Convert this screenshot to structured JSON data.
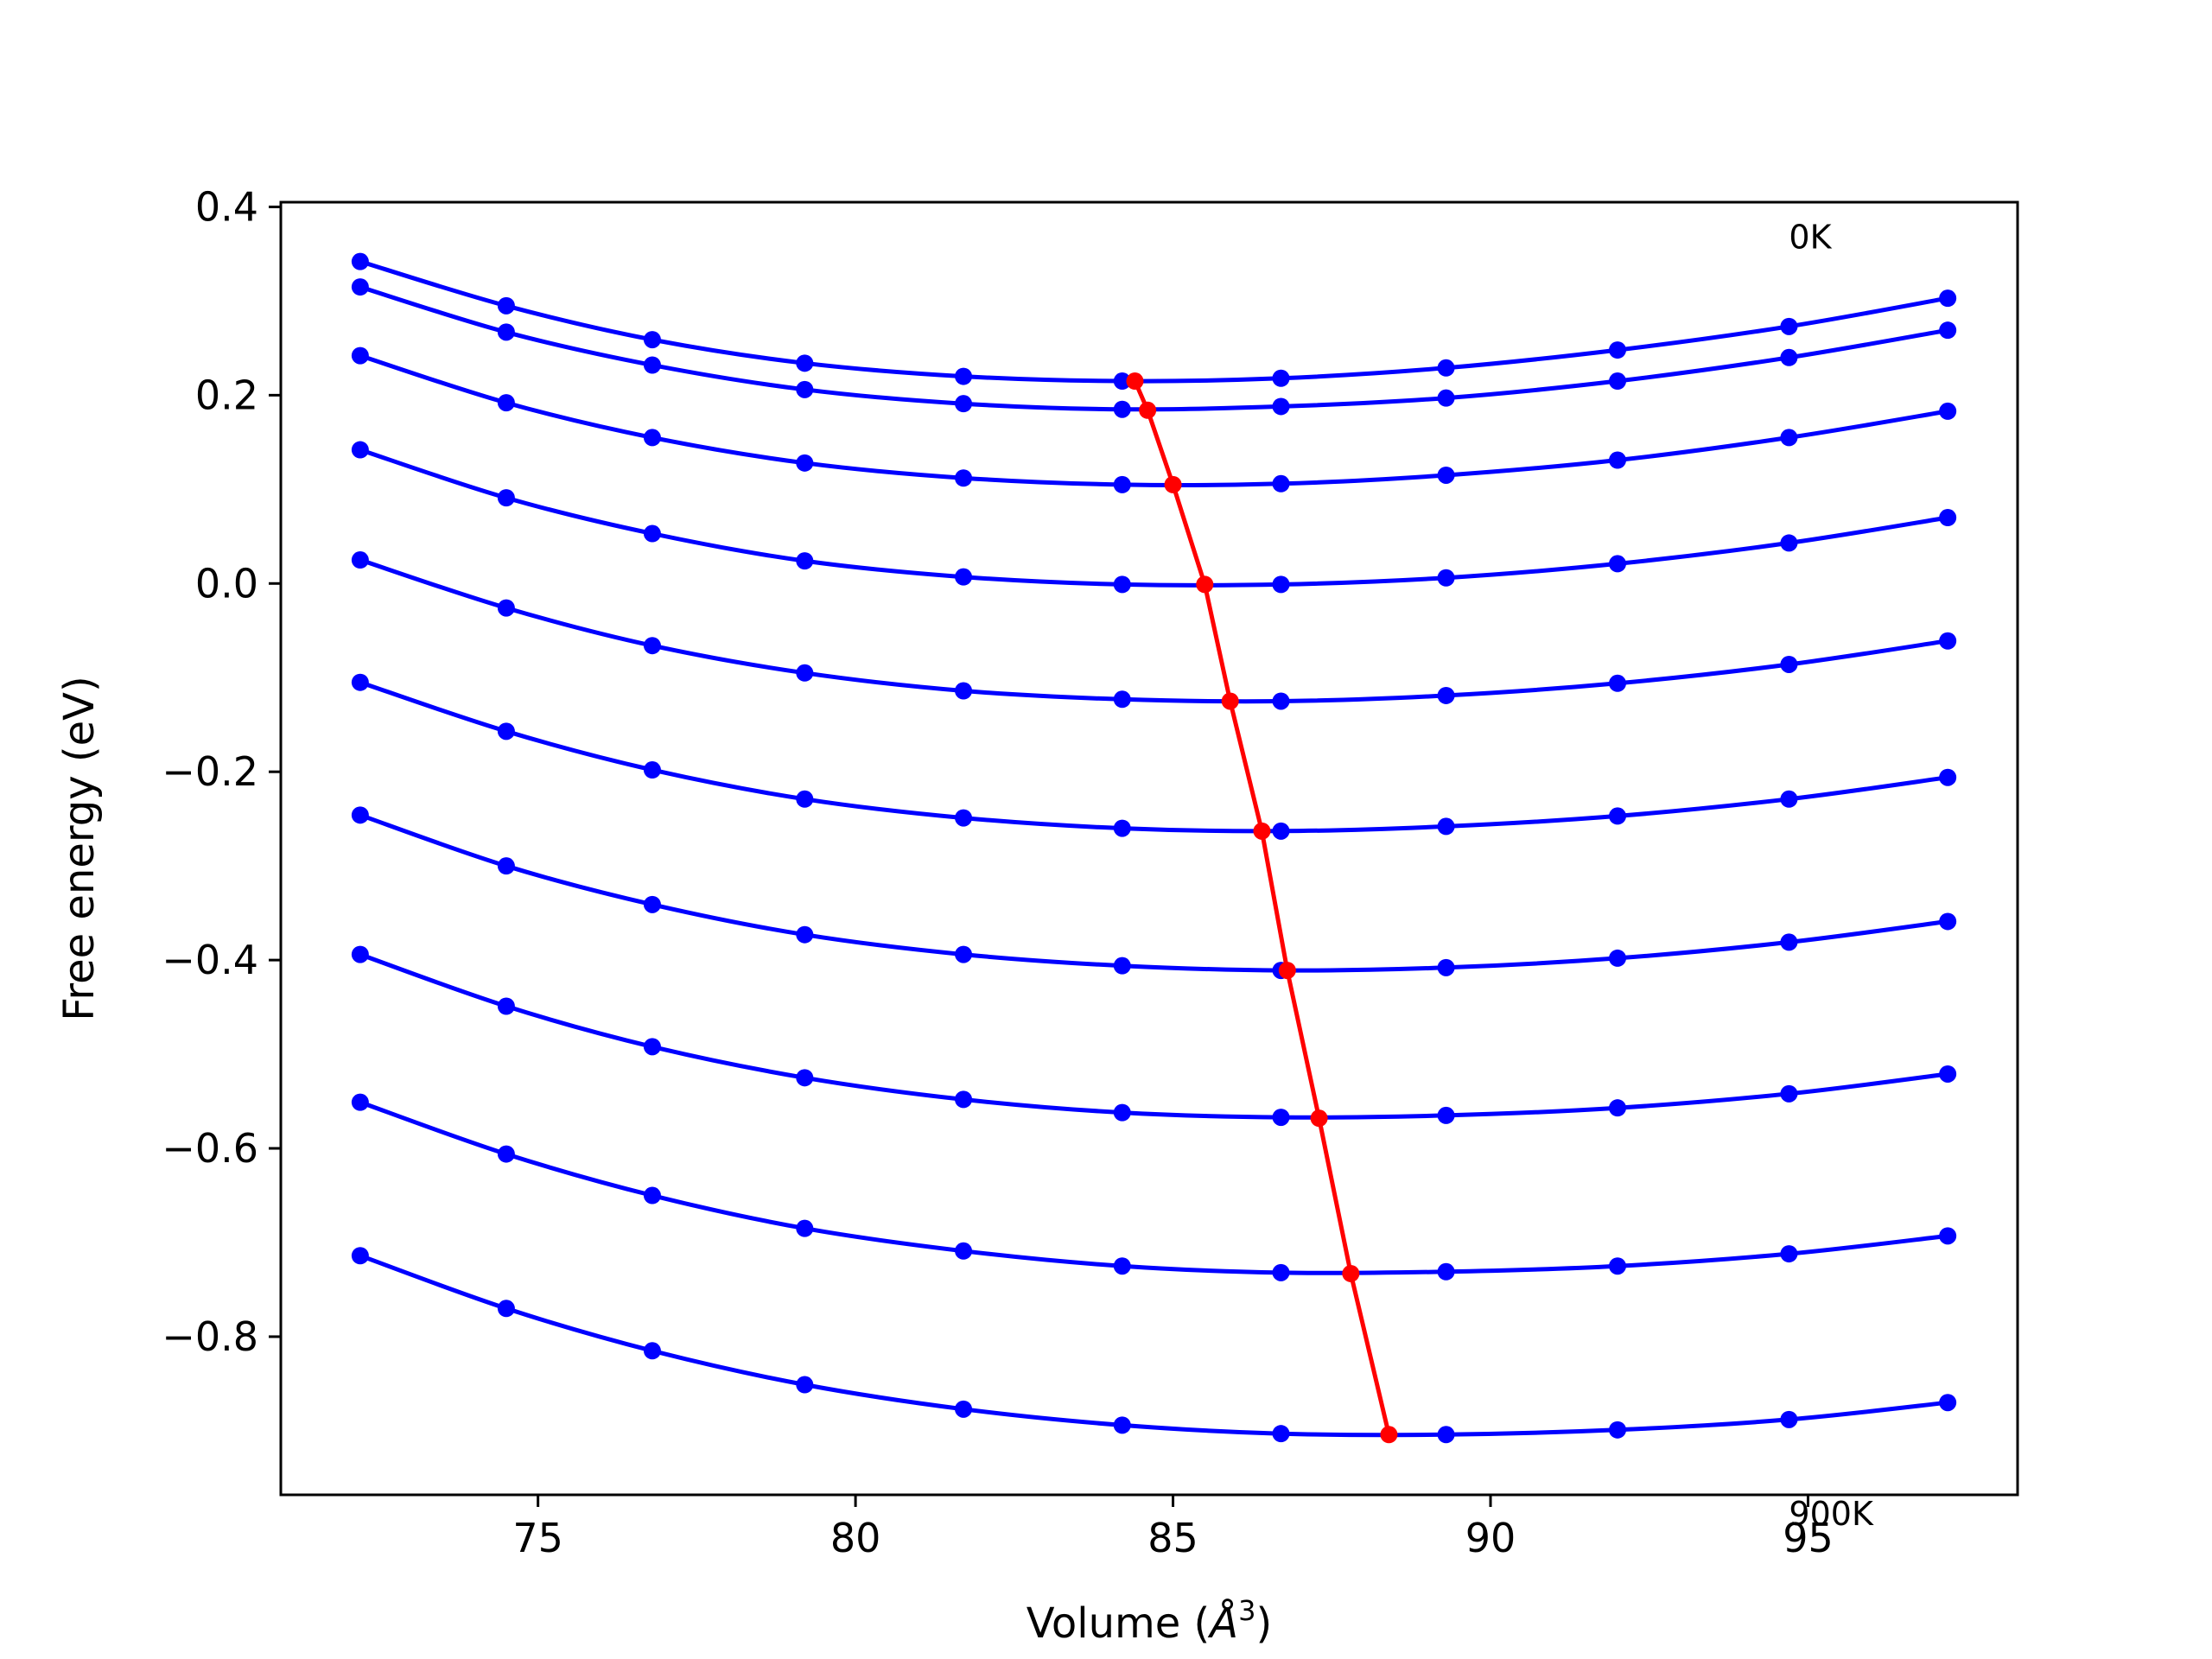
{
  "chart_data": {
    "type": "line",
    "title": "",
    "xlabel": "Volume (",
    "xlabel_unit": "Å",
    "xlabel_exp": "3",
    "xlabel_close": ")",
    "ylabel": "Free energy (eV)",
    "xlim": [
      70.95,
      98.3
    ],
    "ylim": [
      -0.968,
      0.405
    ],
    "xticks": [
      75,
      80,
      85,
      90,
      95
    ],
    "xtick_labels": [
      "75",
      "80",
      "85",
      "90",
      "95"
    ],
    "yticks": [
      0.4,
      0.2,
      0.0,
      -0.2,
      -0.4,
      -0.6,
      -0.8
    ],
    "ytick_labels": [
      "0.4",
      "0.2",
      "0.0",
      "−0.2",
      "−0.4",
      "−0.6",
      "−0.8"
    ],
    "grid": false,
    "annotations": [
      {
        "text": "0K",
        "x": 94.7,
        "y": 0.356
      },
      {
        "text": "900K",
        "x": 94.7,
        "y": -1.0
      }
    ],
    "x": [
      72.2,
      74.5,
      76.8,
      79.2,
      81.7,
      84.2,
      86.7,
      89.3,
      92.0,
      94.7,
      97.2
    ],
    "series": [
      {
        "color": "#0000ff",
        "values": [
          0.342,
          0.295,
          0.259,
          0.234,
          0.22,
          0.215,
          0.218,
          0.229,
          0.248,
          0.273,
          0.303
        ]
      },
      {
        "color": "#0000ff",
        "values": [
          0.315,
          0.267,
          0.232,
          0.206,
          0.191,
          0.185,
          0.188,
          0.197,
          0.215,
          0.24,
          0.269
        ]
      },
      {
        "color": "#0000ff",
        "values": [
          0.242,
          0.192,
          0.155,
          0.128,
          0.112,
          0.105,
          0.106,
          0.115,
          0.131,
          0.155,
          0.183
        ]
      },
      {
        "color": "#0000ff",
        "values": [
          0.142,
          0.091,
          0.053,
          0.024,
          0.007,
          -0.001,
          -0.001,
          0.006,
          0.021,
          0.043,
          0.07
        ]
      },
      {
        "color": "#0000ff",
        "values": [
          0.025,
          -0.026,
          -0.066,
          -0.095,
          -0.114,
          -0.123,
          -0.125,
          -0.119,
          -0.106,
          -0.086,
          -0.061
        ]
      },
      {
        "color": "#0000ff",
        "values": [
          -0.105,
          -0.157,
          -0.198,
          -0.229,
          -0.249,
          -0.26,
          -0.263,
          -0.258,
          -0.247,
          -0.229,
          -0.206
        ]
      },
      {
        "color": "#0000ff",
        "values": [
          -0.246,
          -0.3,
          -0.341,
          -0.373,
          -0.394,
          -0.406,
          -0.411,
          -0.408,
          -0.398,
          -0.381,
          -0.359
        ]
      },
      {
        "color": "#0000ff",
        "values": [
          -0.394,
          -0.449,
          -0.492,
          -0.525,
          -0.548,
          -0.562,
          -0.567,
          -0.565,
          -0.557,
          -0.542,
          -0.521
        ]
      },
      {
        "color": "#0000ff",
        "values": [
          -0.551,
          -0.606,
          -0.65,
          -0.685,
          -0.709,
          -0.725,
          -0.732,
          -0.731,
          -0.725,
          -0.712,
          -0.693
        ]
      },
      {
        "color": "#0000ff",
        "values": [
          -0.714,
          -0.77,
          -0.815,
          -0.851,
          -0.877,
          -0.894,
          -0.903,
          -0.904,
          -0.899,
          -0.888,
          -0.87
        ]
      }
    ],
    "minima": {
      "color": "#ff0000",
      "x": [
        84.4,
        84.6,
        85.0,
        85.5,
        85.9,
        86.4,
        86.8,
        87.3,
        87.8,
        88.4
      ],
      "y": [
        0.215,
        0.184,
        0.105,
        -0.001,
        -0.125,
        -0.263,
        -0.411,
        -0.568,
        -0.733,
        -0.904
      ]
    }
  }
}
